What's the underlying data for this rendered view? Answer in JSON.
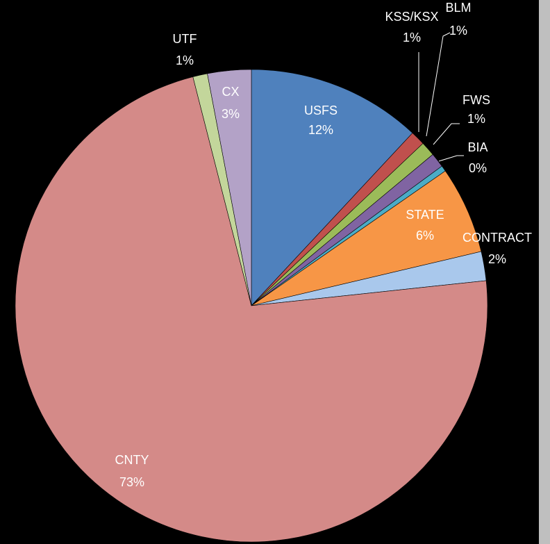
{
  "chart_data": {
    "type": "pie",
    "categories": [
      "USFS",
      "KSS/KSX",
      "BLM",
      "FWS",
      "BIA",
      "STATE",
      "CONTRACT",
      "CNTY",
      "UTF",
      "CX"
    ],
    "values": [
      12,
      1,
      1,
      1,
      0.4,
      6,
      2,
      73,
      1,
      3
    ],
    "value_labels": [
      "12%",
      "1%",
      "1%",
      "1%",
      "0%",
      "6%",
      "2%",
      "73%",
      "1%",
      "3%"
    ],
    "colors": [
      "#4f81bd",
      "#c0504d",
      "#9bbb59",
      "#8064a2",
      "#4bacc6",
      "#f79646",
      "#a9c8ec",
      "#d48a88",
      "#c3d69b",
      "#b3a2c7"
    ]
  }
}
